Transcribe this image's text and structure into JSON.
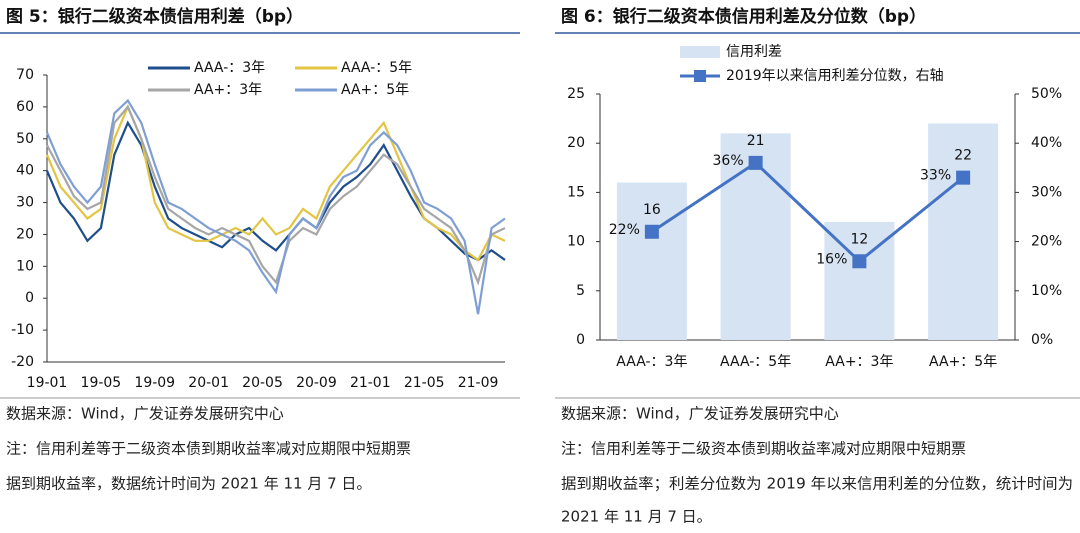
{
  "chart_data": [
    {
      "type": "line",
      "title": "图 5：银行二级资本债信用利差（bp）",
      "categories": [
        "19-01",
        null,
        null,
        null,
        "19-05",
        null,
        null,
        null,
        "19-09",
        null,
        null,
        null,
        "20-01",
        null,
        null,
        null,
        "20-05",
        null,
        null,
        null,
        "20-09",
        null,
        null,
        null,
        "21-01",
        null,
        null,
        null,
        "21-05",
        null,
        null,
        null,
        "21-09",
        null,
        null
      ],
      "series": [
        {
          "name": "AAA-：3年",
          "color": "#1f4e8c",
          "values": [
            40,
            30,
            25,
            18,
            22,
            45,
            55,
            48,
            35,
            25,
            22,
            20,
            18,
            16,
            20,
            22,
            18,
            15,
            20,
            25,
            22,
            30,
            35,
            38,
            42,
            48,
            40,
            32,
            25,
            22,
            18,
            14,
            12,
            15,
            12
          ]
        },
        {
          "name": "AAA-：5年",
          "color": "#e3c443",
          "values": [
            45,
            35,
            30,
            25,
            28,
            50,
            60,
            50,
            30,
            22,
            20,
            18,
            18,
            20,
            22,
            20,
            25,
            20,
            22,
            28,
            25,
            35,
            40,
            45,
            50,
            55,
            45,
            35,
            25,
            22,
            20,
            15,
            12,
            20,
            18
          ]
        },
        {
          "name": "AA+：3年",
          "color": "#a6a6a6",
          "values": [
            48,
            40,
            32,
            28,
            30,
            55,
            60,
            50,
            38,
            28,
            25,
            22,
            20,
            22,
            20,
            18,
            10,
            5,
            18,
            22,
            20,
            28,
            32,
            35,
            40,
            45,
            42,
            35,
            28,
            25,
            22,
            15,
            5,
            20,
            22
          ]
        },
        {
          "name": "AA+：5年",
          "color": "#7f9fd4",
          "values": [
            52,
            42,
            35,
            30,
            35,
            58,
            62,
            55,
            42,
            30,
            28,
            25,
            22,
            20,
            18,
            15,
            8,
            2,
            20,
            25,
            22,
            32,
            38,
            40,
            48,
            52,
            48,
            40,
            30,
            28,
            25,
            18,
            -5,
            22,
            25
          ]
        }
      ],
      "ylim": [
        -20,
        70
      ],
      "yticks": [
        -20,
        -10,
        0,
        10,
        20,
        30,
        40,
        50,
        60,
        70
      ]
    },
    {
      "type": "bar",
      "title": "图 6：银行二级资本债信用利差及分位数（bp）",
      "categories": [
        "AAA-：3年",
        "AAA-：5年",
        "AA+：3年",
        "AA+：5年"
      ],
      "series": [
        {
          "name": "信用利差",
          "color": "#d6e3f3",
          "values": [
            16,
            21,
            12,
            22
          ]
        },
        {
          "name": "2019年以来信用利差分位数，右轴",
          "color": "#4472c4",
          "axis": "y2",
          "values": [
            22,
            36,
            16,
            33
          ],
          "value_labels": [
            "22%",
            "36%",
            "16%",
            "33%"
          ]
        }
      ],
      "ylim": [
        0,
        25
      ],
      "yticks": [
        0,
        5,
        10,
        15,
        20,
        25
      ],
      "y2lim": [
        0,
        50
      ],
      "y2ticks": [
        {
          "value": 0,
          "label": "0%"
        },
        {
          "value": 10,
          "label": "10%"
        },
        {
          "value": 20,
          "label": "20%"
        },
        {
          "value": 30,
          "label": "30%"
        },
        {
          "value": 40,
          "label": "40%"
        },
        {
          "value": 50,
          "label": "50%"
        }
      ]
    }
  ],
  "panels": [
    {
      "source": "数据来源：Wind，广发证券发展研究中心",
      "note_lines": [
        "注：信用利差等于二级资本债到期收益率减对应期限中短期票",
        "据到期收益率，数据统计时间为 2021 年 11 月 7 日。"
      ]
    },
    {
      "source": "数据来源：Wind，广发证券发展研究中心",
      "note_lines": [
        "注：信用利差等于二级资本债到期收益率减对应期限中短期票",
        "据到期收益率；利差分位数为 2019 年以来信用利差的分位数，统计时间为",
        "2021 年 11 月 7 日。"
      ]
    }
  ]
}
